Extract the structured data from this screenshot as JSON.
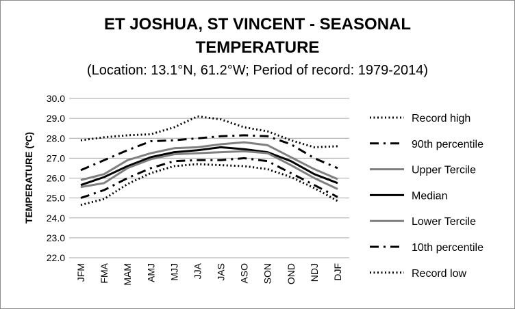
{
  "chart_data": {
    "type": "line",
    "title_line1": "ET JOSHUA, ST VINCENT - SEASONAL",
    "title_line2": "TEMPERATURE",
    "subtitle": "(Location: 13.1°N, 61.2°W; Period of record: 1979-2014)",
    "ylabel": "TEMPERATURE (ºC)",
    "xlabel": "",
    "ylim": [
      22.0,
      30.0
    ],
    "ytick_step": 1.0,
    "grid": true,
    "legend_position": "right",
    "categories": [
      "JFM",
      "FMA",
      "MAM",
      "AMJ",
      "MJJ",
      "JJA",
      "JAS",
      "ASO",
      "SON",
      "OND",
      "NDJ",
      "DJF"
    ],
    "series": [
      {
        "name": "Record high",
        "style": "dotted",
        "color": "#000000",
        "values": [
          27.9,
          28.05,
          28.15,
          28.2,
          28.55,
          29.1,
          28.95,
          28.55,
          28.35,
          27.9,
          27.55,
          27.6
        ]
      },
      {
        "name": "90th percentile",
        "style": "dashdot",
        "color": "#000000",
        "values": [
          26.4,
          26.9,
          27.4,
          27.85,
          27.9,
          28.0,
          28.1,
          28.15,
          28.1,
          27.7,
          27.0,
          26.5
        ]
      },
      {
        "name": "Upper Tercile",
        "style": "solid",
        "color": "#7f7f7f",
        "values": [
          25.9,
          26.2,
          26.9,
          27.25,
          27.5,
          27.55,
          27.7,
          27.8,
          27.65,
          27.05,
          26.45,
          25.95
        ]
      },
      {
        "name": "Median",
        "style": "solid",
        "color": "#000000",
        "values": [
          25.65,
          26.05,
          26.6,
          27.05,
          27.3,
          27.4,
          27.55,
          27.45,
          27.3,
          26.85,
          26.2,
          25.75
        ]
      },
      {
        "name": "Lower Tercile",
        "style": "solid",
        "color": "#7f7f7f",
        "values": [
          25.55,
          25.75,
          26.5,
          26.95,
          27.2,
          27.25,
          27.3,
          27.35,
          27.25,
          26.65,
          26.0,
          25.45
        ]
      },
      {
        "name": "10th percentile",
        "style": "dashdot",
        "color": "#000000",
        "values": [
          25.0,
          25.4,
          26.0,
          26.5,
          26.85,
          26.9,
          26.9,
          27.0,
          26.85,
          26.25,
          25.65,
          25.05
        ]
      },
      {
        "name": "Record low",
        "style": "dotted",
        "color": "#000000",
        "values": [
          24.65,
          24.95,
          25.7,
          26.25,
          26.6,
          26.7,
          26.65,
          26.6,
          26.45,
          26.05,
          25.5,
          24.85
        ]
      }
    ]
  }
}
